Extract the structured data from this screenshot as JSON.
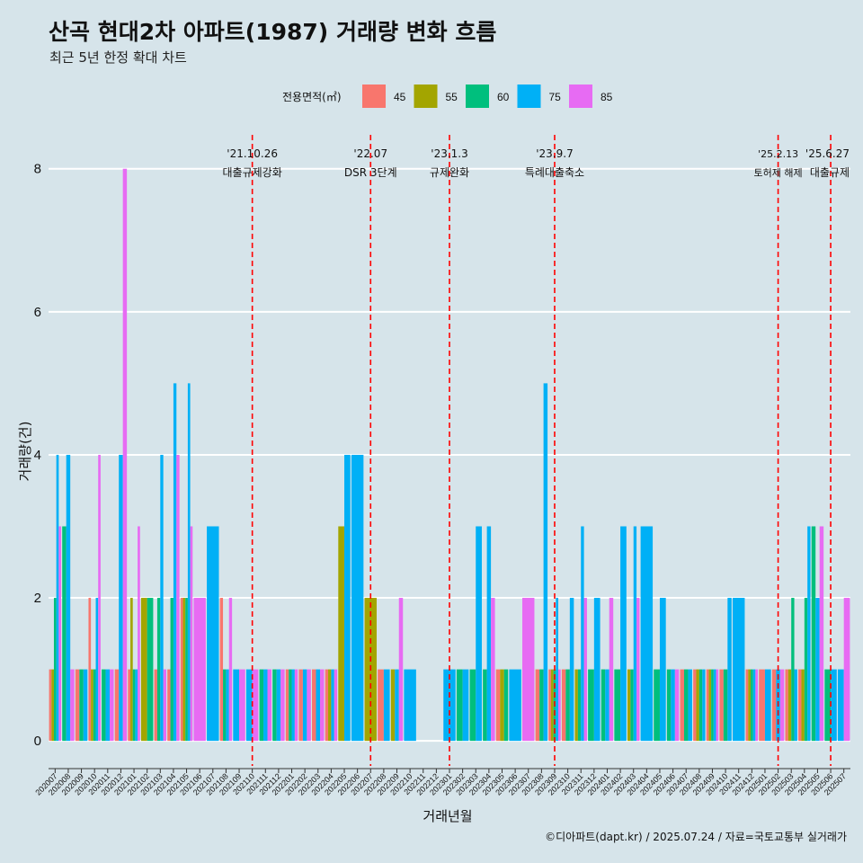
{
  "chart_data": {
    "type": "bar",
    "title": "산곡 현대2차 아파트(1987) 거래량 변화 흐름",
    "subtitle": "최근 5년 한정 확대 차트",
    "xlabel": "거래년월",
    "ylabel": "거래량(건)",
    "caption": "©디아파트(dapt.kr) / 2025.07.24 / 자료=국토교통부 실거래가",
    "ylim": [
      -0.35,
      8.6
    ],
    "yticks": [
      "0",
      "2",
      "4",
      "6",
      "8"
    ],
    "legend": {
      "title": "전용면적(㎡)",
      "entries": [
        "45",
        "55",
        "60",
        "75",
        "85"
      ]
    },
    "colors": {
      "45": "#f8766d",
      "55": "#a3a500",
      "60": "#00bf7d",
      "75": "#00b0f6",
      "85": "#e76bf3"
    },
    "months": [
      "202007",
      "202008",
      "202009",
      "202010",
      "202011",
      "202012",
      "202101",
      "202102",
      "202103",
      "202104",
      "202105",
      "202106",
      "202107",
      "202108",
      "202109",
      "202110",
      "202111",
      "202112",
      "202201",
      "202202",
      "202203",
      "202204",
      "202205",
      "202206",
      "202207",
      "202208",
      "202209",
      "202210",
      "202211",
      "202212",
      "202301",
      "202302",
      "202303",
      "202304",
      "202305",
      "202306",
      "202307",
      "202308",
      "202309",
      "202310",
      "202311",
      "202312",
      "202401",
      "202402",
      "202403",
      "202404",
      "202405",
      "202406",
      "202407",
      "202408",
      "202409",
      "202410",
      "202411",
      "202412",
      "202501",
      "202502",
      "202503",
      "202504",
      "202505",
      "202506",
      "202507"
    ],
    "series": [
      {
        "name": "45",
        "values": [
          1,
          0,
          1,
          2,
          0,
          1,
          1,
          0,
          1,
          1,
          2,
          0,
          0,
          2,
          0,
          0,
          0,
          0,
          1,
          1,
          1,
          1,
          0,
          0,
          0,
          1,
          0,
          0,
          0,
          0,
          0,
          0,
          0,
          0,
          1,
          0,
          0,
          1,
          1,
          1,
          0,
          0,
          0,
          0,
          0,
          0,
          0,
          0,
          1,
          1,
          1,
          1,
          0,
          1,
          1,
          1,
          1,
          1,
          0,
          0,
          0
        ]
      },
      {
        "name": "55",
        "values": [
          1,
          0,
          0,
          1,
          0,
          0,
          2,
          2,
          0,
          0,
          2,
          0,
          0,
          0,
          0,
          0,
          0,
          0,
          0,
          0,
          0,
          1,
          3,
          0,
          2,
          0,
          1,
          0,
          0,
          0,
          0,
          0,
          0,
          0,
          1,
          0,
          0,
          0,
          1,
          0,
          1,
          0,
          0,
          0,
          1,
          0,
          0,
          0,
          0,
          1,
          1,
          0,
          0,
          1,
          0,
          0,
          1,
          1,
          0,
          0,
          0
        ]
      },
      {
        "name": "60",
        "values": [
          2,
          3,
          1,
          1,
          1,
          0,
          1,
          2,
          2,
          2,
          2,
          0,
          0,
          1,
          0,
          0,
          1,
          1,
          1,
          0,
          0,
          0,
          0,
          0,
          0,
          0,
          0,
          0,
          0,
          0,
          0,
          1,
          1,
          1,
          1,
          0,
          0,
          1,
          1,
          1,
          1,
          1,
          1,
          1,
          1,
          0,
          1,
          1,
          1,
          1,
          1,
          1,
          0,
          1,
          0,
          0,
          2,
          2,
          3,
          1,
          0
        ]
      },
      {
        "name": "75",
        "values": [
          4,
          4,
          1,
          2,
          1,
          4,
          1,
          0,
          4,
          5,
          5,
          0,
          3,
          1,
          1,
          1,
          1,
          1,
          1,
          1,
          1,
          1,
          4,
          4,
          0,
          1,
          1,
          1,
          0,
          0,
          1,
          1,
          3,
          3,
          0,
          1,
          0,
          5,
          2,
          2,
          3,
          2,
          1,
          3,
          3,
          3,
          2,
          1,
          1,
          1,
          1,
          2,
          2,
          1,
          1,
          1,
          1,
          3,
          2,
          1,
          1
        ]
      },
      {
        "name": "85",
        "values": [
          3,
          1,
          0,
          4,
          1,
          8,
          3,
          0,
          1,
          4,
          3,
          2,
          0,
          2,
          1,
          1,
          1,
          1,
          1,
          1,
          1,
          1,
          0,
          0,
          0,
          0,
          2,
          0,
          0,
          0,
          0,
          0,
          0,
          2,
          0,
          0,
          2,
          0,
          1,
          0,
          2,
          0,
          2,
          0,
          2,
          0,
          0,
          1,
          0,
          0,
          1,
          0,
          0,
          1,
          0,
          1,
          0,
          0,
          3,
          0,
          2
        ]
      }
    ],
    "events": [
      {
        "date": "'21.10.26",
        "label": "대출규제강화",
        "month": "202110"
      },
      {
        "date": "'22.07",
        "label": "DSR 3단계",
        "month": "202207"
      },
      {
        "date": "'23.1.3",
        "label": "규제완화",
        "month": "202301"
      },
      {
        "date": "'23.9.7",
        "label": "특례대출축소",
        "month": "202309"
      },
      {
        "date": "'25.2.13",
        "label": "토허제 해제",
        "month": "202502"
      },
      {
        "date": "'25.6.27",
        "label": "대출규제",
        "month": "202506"
      }
    ]
  }
}
